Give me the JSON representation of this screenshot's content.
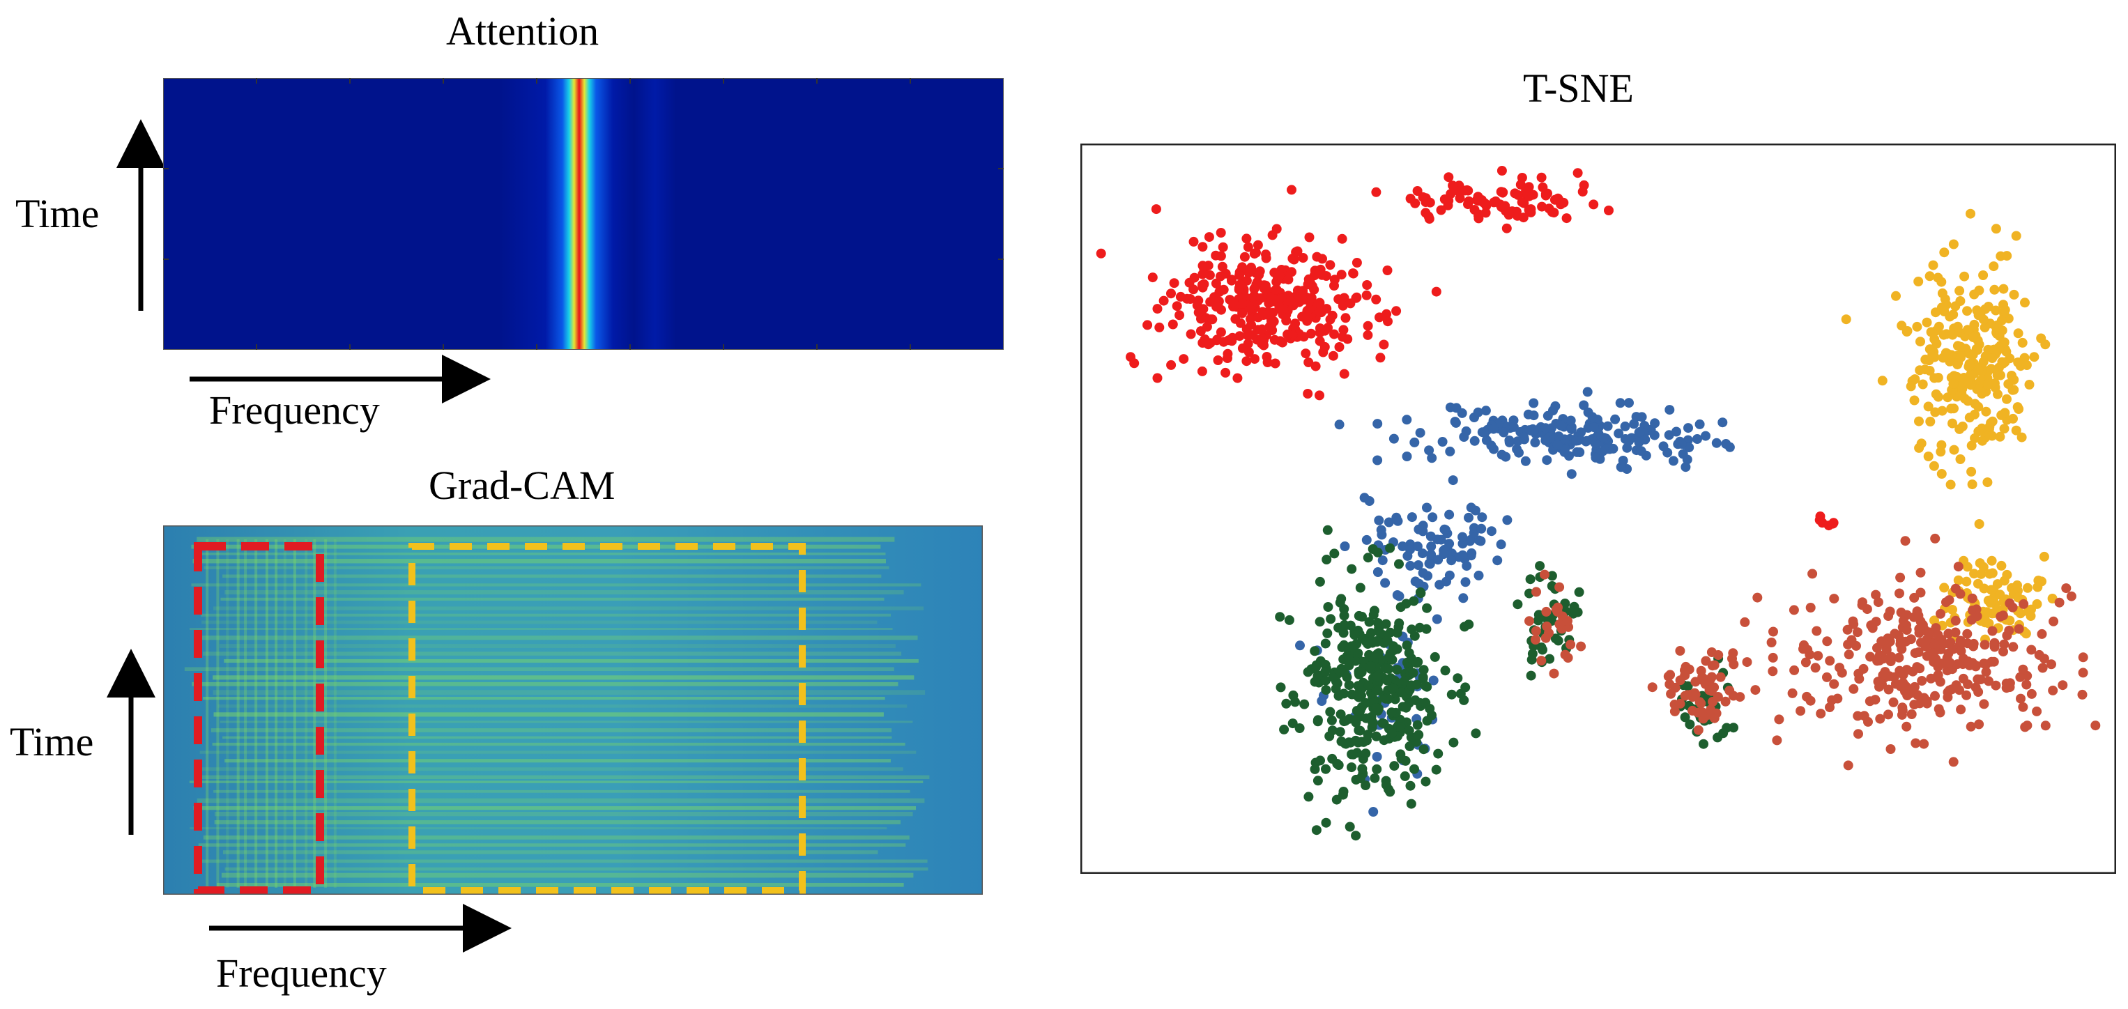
{
  "panels": {
    "attention": {
      "title": "Attention",
      "y_label": "Time",
      "x_label": "Frequency"
    },
    "gradcam": {
      "title": "Grad-CAM",
      "y_label": "Time",
      "x_label": "Frequency"
    },
    "tsne": {
      "title": "T-SNE"
    }
  },
  "colors": {
    "heatmap_background": "#00138c",
    "attention_peak": "#e8101a",
    "gradcam_base": "#2e8fb5",
    "gradcam_bright": "#7fdc63",
    "box_red": "#e11b22",
    "box_yellow": "#f2c11c",
    "class_red": "#ee1c1c",
    "class_yellow": "#f0b323",
    "class_blue": "#3565a8",
    "class_green": "#1d5e2e",
    "class_orange": "#c8503a"
  },
  "chart_data": [
    {
      "type": "heatmap",
      "title": "Attention",
      "xlabel": "Frequency",
      "ylabel": "Time",
      "peak_frequency_fraction": 0.495
    },
    {
      "type": "heatmap",
      "title": "Grad-CAM",
      "xlabel": "Frequency",
      "ylabel": "Time",
      "highlight_regions": [
        {
          "color": "red",
          "x_from": 0.04,
          "x_to": 0.19
        },
        {
          "color": "yellow",
          "x_from": 0.3,
          "x_to": 0.78
        }
      ]
    },
    {
      "type": "scatter",
      "title": "T-SNE",
      "series": [
        {
          "color": "#ee1c1c",
          "clusters": [
            [
              0.18,
              0.22,
              0.1,
              0.09,
              330
            ],
            [
              0.4,
              0.08,
              0.09,
              0.03,
              90
            ],
            [
              0.72,
              0.52,
              0.01,
              0.01,
              6
            ]
          ]
        },
        {
          "color": "#f0b323",
          "clusters": [
            [
              0.86,
              0.3,
              0.06,
              0.14,
              260
            ],
            [
              0.88,
              0.62,
              0.05,
              0.05,
              90
            ]
          ]
        },
        {
          "color": "#3565a8",
          "clusters": [
            [
              0.47,
              0.4,
              0.14,
              0.04,
              200
            ],
            [
              0.34,
              0.56,
              0.06,
              0.07,
              90
            ],
            [
              0.3,
              0.75,
              0.06,
              0.12,
              40
            ]
          ]
        },
        {
          "color": "#1d5e2e",
          "clusters": [
            [
              0.28,
              0.74,
              0.07,
              0.14,
              350
            ],
            [
              0.45,
              0.65,
              0.03,
              0.06,
              40
            ],
            [
              0.6,
              0.77,
              0.03,
              0.05,
              30
            ]
          ]
        },
        {
          "color": "#c8503a",
          "clusters": [
            [
              0.82,
              0.71,
              0.14,
              0.1,
              300
            ],
            [
              0.6,
              0.74,
              0.04,
              0.06,
              60
            ],
            [
              0.46,
              0.66,
              0.03,
              0.05,
              25
            ]
          ]
        }
      ]
    }
  ]
}
